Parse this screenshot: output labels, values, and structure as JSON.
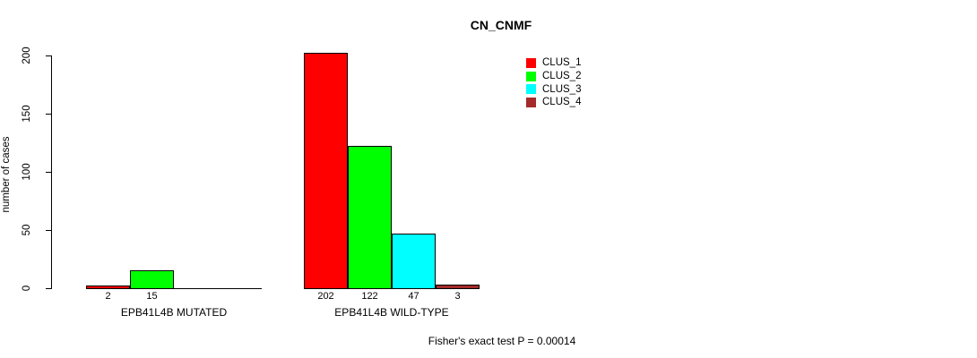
{
  "chart_data": {
    "type": "bar",
    "title": "CN_CNMF",
    "ylabel": "number of cases",
    "ylim": [
      0,
      200
    ],
    "yticks": [
      0,
      50,
      100,
      150,
      200
    ],
    "categories": [
      "EPB41L4B MUTATED",
      "EPB41L4B WILD-TYPE"
    ],
    "series": [
      {
        "name": "CLUS_1",
        "color": "#FF0000",
        "values": [
          2,
          202
        ]
      },
      {
        "name": "CLUS_2",
        "color": "#00FF00",
        "values": [
          15,
          122
        ]
      },
      {
        "name": "CLUS_3",
        "color": "#00FFFF",
        "values": [
          0,
          47
        ]
      },
      {
        "name": "CLUS_4",
        "color": "#A52A2A",
        "values": [
          0,
          3
        ]
      }
    ],
    "bar_value_labels": true,
    "legend_position": "top-right",
    "grid": false,
    "annotation": "Fisher's exact test P = 0.00014"
  },
  "colors": {
    "background": "#FFFFFF",
    "axis": "#000000",
    "text": "#000000"
  }
}
